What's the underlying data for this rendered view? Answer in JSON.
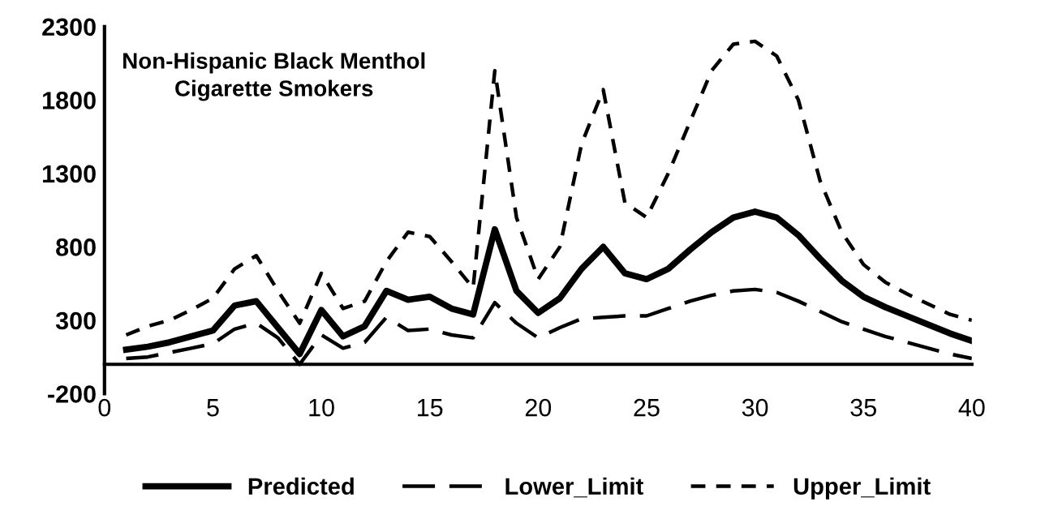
{
  "chart_data": {
    "type": "line",
    "title": "Non-Hispanic Black Menthol\nCigarette Smokers",
    "x": [
      1,
      2,
      3,
      4,
      5,
      6,
      7,
      8,
      9,
      10,
      11,
      12,
      13,
      14,
      15,
      16,
      17,
      18,
      19,
      20,
      21,
      22,
      23,
      24,
      25,
      26,
      27,
      28,
      29,
      30,
      31,
      32,
      33,
      34,
      35,
      36,
      37,
      38,
      39,
      40
    ],
    "series": [
      {
        "name": "Predicted",
        "color": "#000000",
        "line_style": "solid",
        "values": [
          100,
          120,
          150,
          190,
          230,
          400,
          430,
          250,
          70,
          370,
          190,
          260,
          500,
          440,
          460,
          380,
          340,
          920,
          500,
          350,
          450,
          650,
          800,
          620,
          580,
          650,
          780,
          900,
          1000,
          1040,
          1000,
          880,
          720,
          570,
          460,
          390,
          330,
          270,
          210,
          160
        ]
      },
      {
        "name": "Lower_Limit",
        "color": "#000000",
        "line_style": "dashed",
        "values": [
          40,
          50,
          80,
          110,
          140,
          240,
          280,
          180,
          0,
          200,
          110,
          150,
          320,
          230,
          240,
          200,
          180,
          420,
          280,
          180,
          250,
          310,
          320,
          330,
          330,
          380,
          430,
          470,
          500,
          510,
          490,
          430,
          360,
          290,
          240,
          190,
          150,
          110,
          70,
          40
        ]
      },
      {
        "name": "Upper_Limit",
        "color": "#000000",
        "line_style": "dashed",
        "values": [
          200,
          260,
          300,
          370,
          450,
          650,
          740,
          500,
          280,
          620,
          380,
          430,
          700,
          900,
          870,
          700,
          520,
          2000,
          1000,
          580,
          800,
          1500,
          1870,
          1100,
          1000,
          1300,
          1650,
          2000,
          2180,
          2200,
          2100,
          1800,
          1250,
          900,
          680,
          560,
          480,
          410,
          340,
          300
        ]
      }
    ],
    "xlim": [
      0,
      40
    ],
    "xticks": [
      0,
      5,
      10,
      15,
      20,
      25,
      30,
      35,
      40
    ],
    "ylim": [
      -200,
      2300
    ],
    "yticks": [
      -200,
      300,
      800,
      1300,
      1800,
      2300
    ],
    "grid": false,
    "legend": "bottom",
    "marker": "none"
  }
}
